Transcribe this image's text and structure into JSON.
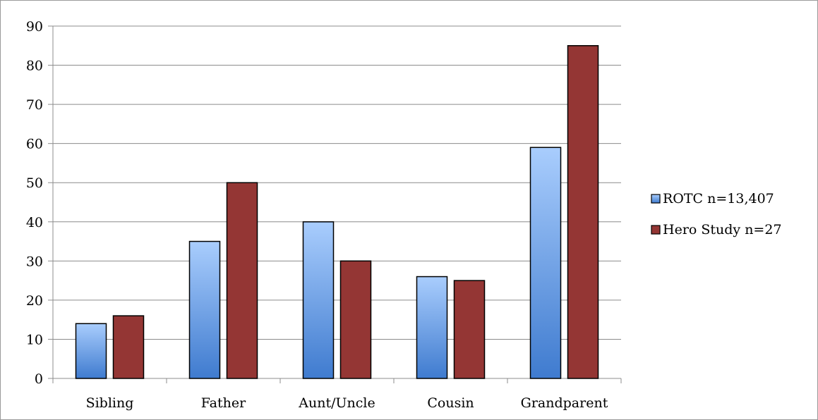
{
  "chart_data": {
    "type": "bar",
    "categories": [
      "Sibling",
      "Father",
      "Aunt/Uncle",
      "Cousin",
      "Grandparent"
    ],
    "series": [
      {
        "name": "ROTC n=13,407",
        "values": [
          14,
          35,
          40,
          26,
          59
        ],
        "color": "#4a86d6"
      },
      {
        "name": "Hero Study n=27",
        "values": [
          16,
          50,
          30,
          25,
          85
        ],
        "color": "#943634"
      }
    ],
    "ylim": [
      0,
      90
    ],
    "yticks": [
      0,
      10,
      20,
      30,
      40,
      50,
      60,
      70,
      80,
      90
    ],
    "grid": true,
    "legend_position": "right"
  }
}
